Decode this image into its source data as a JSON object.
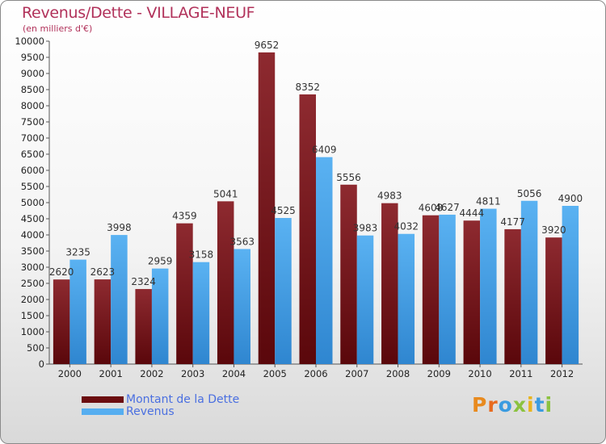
{
  "title": "Revenus/Dette - VILLAGE-NEUF",
  "subtitle": "(en milliers d'€)",
  "legend": {
    "debt_label": "Montant de la Dette",
    "revenue_label": "Revenus"
  },
  "brand": {
    "letters": [
      "P",
      "r",
      "o",
      "x",
      "i",
      "t",
      "i"
    ]
  },
  "colors": {
    "debt": "#6b0d10",
    "debt_light": "#8e2a30",
    "revenue": "#56aef0",
    "revenue_dark": "#2b7fc9",
    "title": "#b1315a",
    "legend_text": "#4a6fe0",
    "brand": [
      "#e88a1e",
      "#e86a1e",
      "#3a9be0",
      "#8bc23f",
      "#e8b41e",
      "#3a9be0",
      "#8bc23f"
    ]
  },
  "chart_data": {
    "type": "bar",
    "title": "Revenus/Dette - VILLAGE-NEUF",
    "ylabel": "(en milliers d'€)",
    "xlabel": "",
    "ylim": [
      0,
      10000
    ],
    "ytick_step": 500,
    "grid": false,
    "legend_position": "bottom-left",
    "categories": [
      "2000",
      "2001",
      "2002",
      "2003",
      "2004",
      "2005",
      "2006",
      "2007",
      "2008",
      "2009",
      "2010",
      "2011",
      "2012"
    ],
    "series": [
      {
        "name": "Montant de la Dette",
        "values": [
          2620,
          2623,
          2324,
          4359,
          5041,
          9652,
          8352,
          5556,
          4983,
          4608,
          4444,
          4177,
          3920
        ]
      },
      {
        "name": "Revenus",
        "values": [
          3235,
          3998,
          2959,
          3158,
          3563,
          4525,
          6409,
          3983,
          4032,
          4627,
          4811,
          5056,
          4900
        ]
      }
    ],
    "value_labels": {
      "Montant de la Dette": [
        "2620",
        "2623",
        "2324",
        "4359",
        "5041",
        "9652",
        "8352",
        "5556",
        "4983",
        "4608",
        "4444",
        "4177",
        "3920"
      ],
      "Revenus": [
        "3235",
        "3998",
        "2959",
        "3158",
        "3563",
        "4525",
        "6409",
        "3983",
        "4032",
        "4627",
        "4811",
        "5056",
        "4900"
      ]
    }
  }
}
